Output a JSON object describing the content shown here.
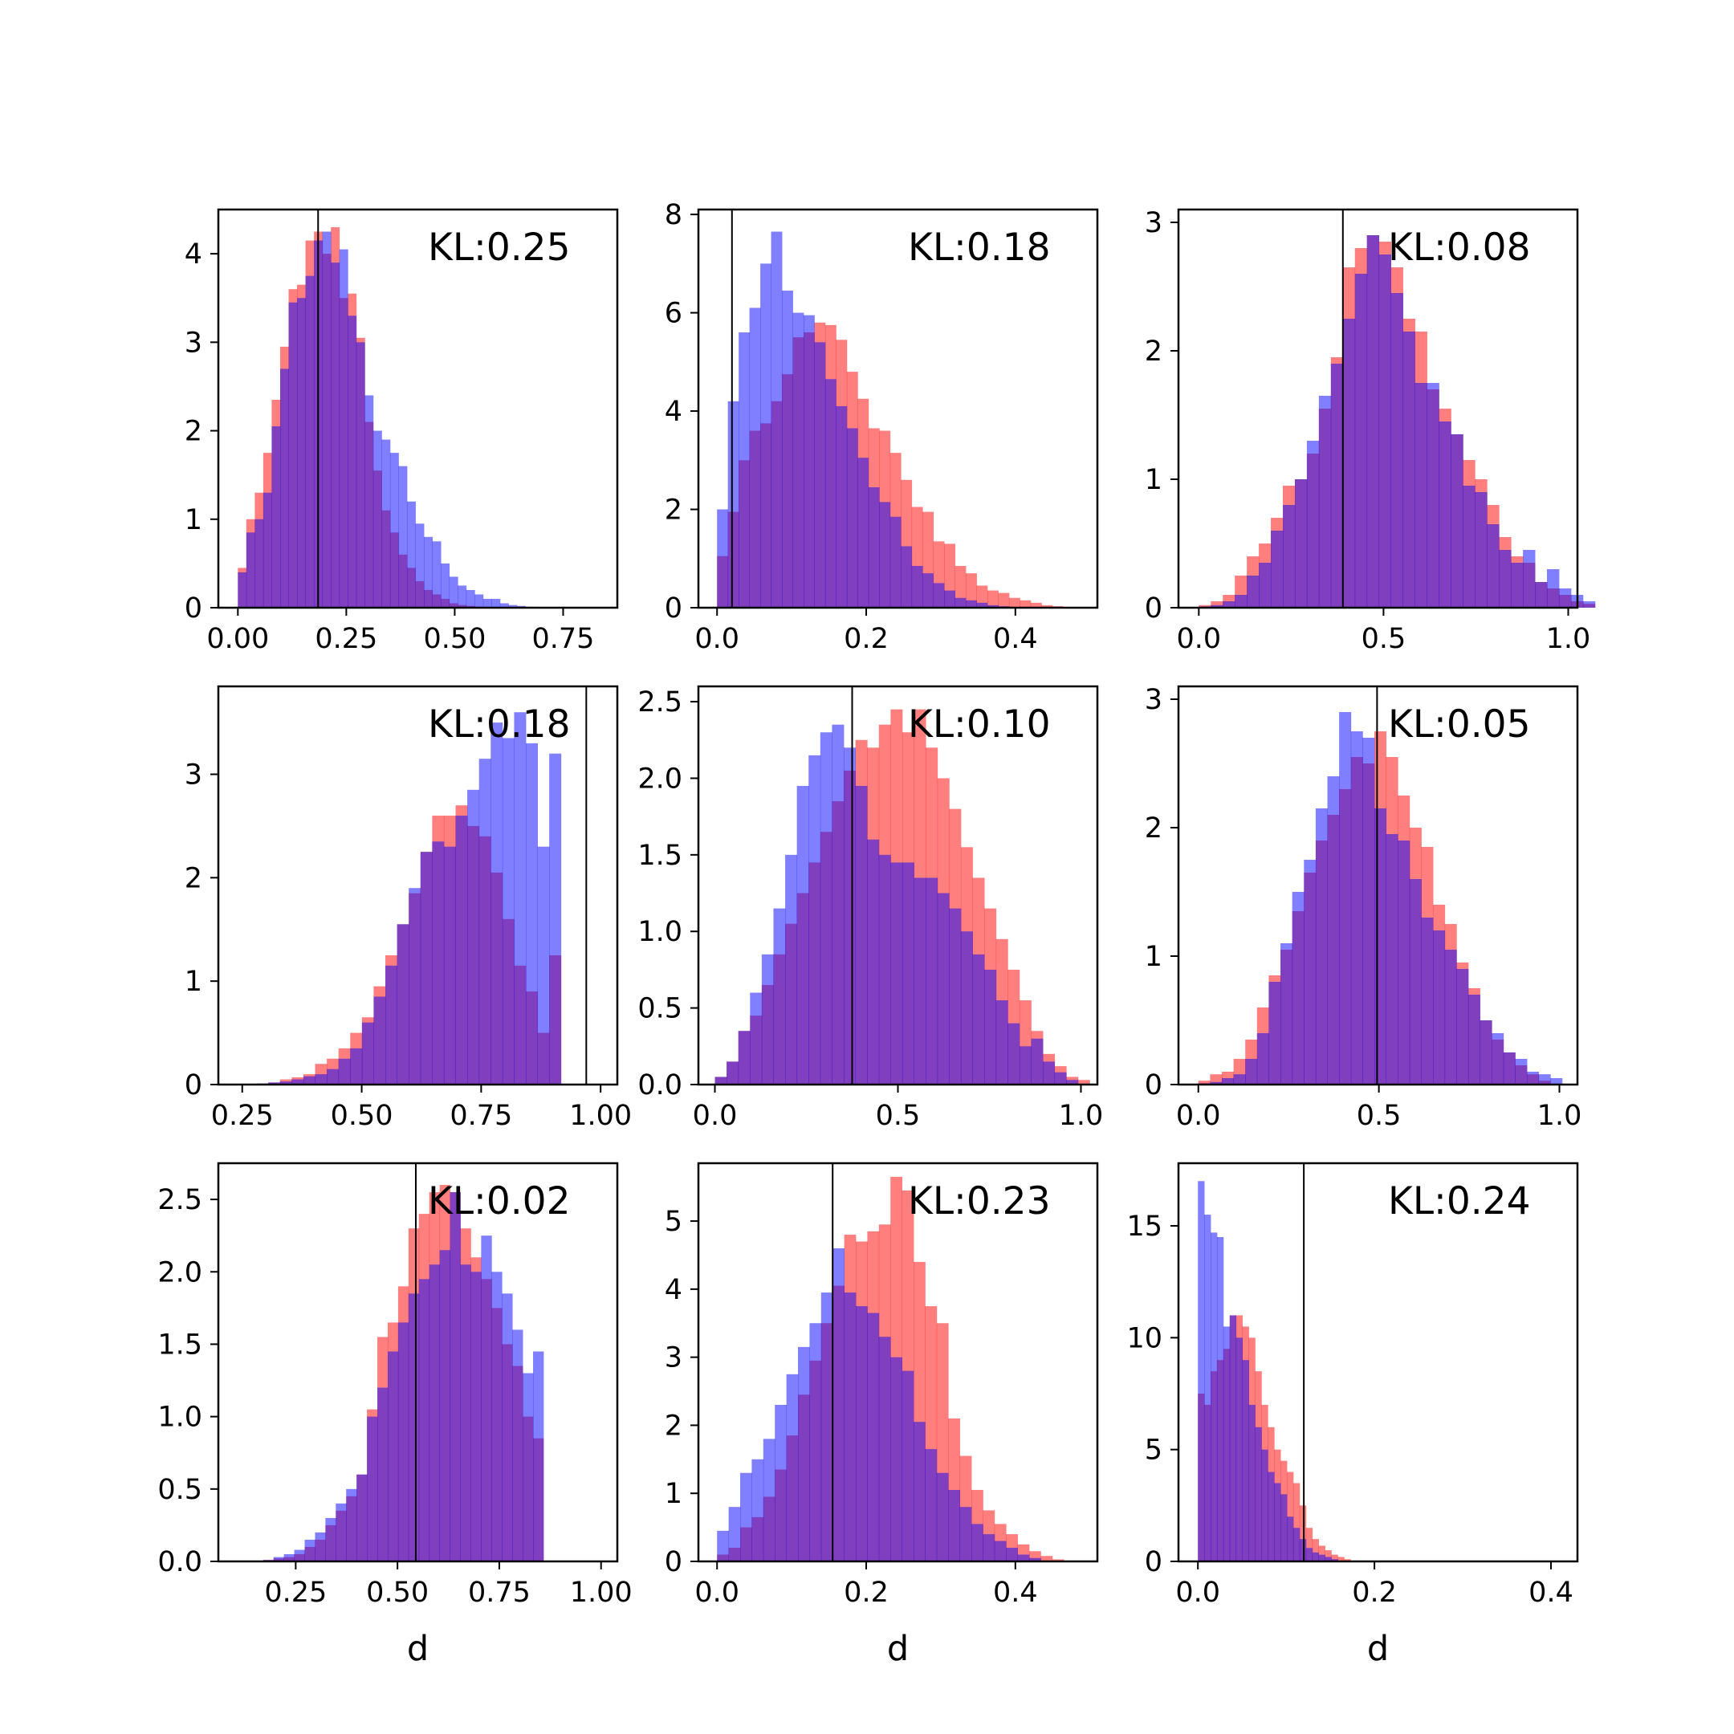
{
  "colors": {
    "series_a": "#ff0000",
    "series_b": "#0000ff",
    "overlap": "#7f3fbf",
    "marker_line": "#000000"
  },
  "chart_data": [
    {
      "type": "bar",
      "bar_style": "overlapping histograms (alpha 0.5)",
      "annotation": "KL:0.25",
      "xlabel": "",
      "ylabel": "",
      "xlim": [
        -0.045,
        0.875
      ],
      "ylim": [
        0,
        4.5
      ],
      "xticks": [
        "0.00",
        "0.25",
        "0.50",
        "0.75"
      ],
      "xtick_values": [
        0,
        0.25,
        0.5,
        0.75
      ],
      "yticks": [
        "0",
        "1",
        "2",
        "3",
        "4"
      ],
      "ytick_values": [
        0,
        1,
        2,
        3,
        4
      ],
      "vline": 0.185,
      "series_a_hist": {
        "x_start": 0.0,
        "bin_width": 0.0195,
        "values": [
          0.45,
          1.0,
          1.3,
          1.75,
          2.35,
          2.95,
          3.6,
          3.65,
          4.15,
          4.25,
          4.0,
          4.3,
          3.5,
          3.55,
          3.05,
          2.1,
          1.55,
          1.1,
          0.85,
          0.6,
          0.45,
          0.3,
          0.2,
          0.15,
          0.1,
          0.05,
          0.03,
          0.02,
          0.01
        ]
      },
      "series_b_hist": {
        "x_start": 0.0,
        "bin_width": 0.0195,
        "values": [
          0.4,
          0.85,
          1.0,
          1.3,
          2.05,
          2.7,
          3.45,
          3.5,
          3.75,
          4.15,
          4.25,
          3.9,
          4.05,
          3.3,
          3.0,
          2.4,
          2.0,
          1.9,
          1.75,
          1.6,
          1.2,
          0.95,
          0.8,
          0.75,
          0.5,
          0.35,
          0.25,
          0.2,
          0.15,
          0.1,
          0.1,
          0.05,
          0.03,
          0.02,
          0.01
        ]
      }
    },
    {
      "type": "bar",
      "bar_style": "overlapping histograms (alpha 0.5)",
      "annotation": "KL:0.18",
      "xlabel": "",
      "ylabel": "",
      "xlim": [
        -0.025,
        0.51
      ],
      "ylim": [
        0,
        8.1
      ],
      "xticks": [
        "0.0",
        "0.2",
        "0.4"
      ],
      "xtick_values": [
        0,
        0.2,
        0.4
      ],
      "yticks": [
        "0",
        "2",
        "4",
        "6",
        "8"
      ],
      "ytick_values": [
        0,
        2,
        4,
        6,
        8
      ],
      "vline": 0.02,
      "series_a_hist": {
        "x_start": 0.0,
        "bin_width": 0.0145,
        "values": [
          1.05,
          1.95,
          3.0,
          3.6,
          3.75,
          4.2,
          4.75,
          5.5,
          5.6,
          5.8,
          5.75,
          5.45,
          4.8,
          4.25,
          3.65,
          3.6,
          3.15,
          2.6,
          2.05,
          1.95,
          1.35,
          1.3,
          0.85,
          0.7,
          0.45,
          0.35,
          0.3,
          0.2,
          0.15,
          0.1,
          0.05,
          0.03
        ]
      },
      "series_b_hist": {
        "x_start": 0.0,
        "bin_width": 0.0145,
        "values": [
          2.0,
          4.2,
          5.6,
          6.1,
          7.0,
          7.65,
          6.45,
          6.0,
          5.95,
          5.4,
          4.65,
          4.1,
          3.65,
          3.05,
          2.45,
          2.15,
          1.85,
          1.25,
          0.85,
          0.7,
          0.5,
          0.35,
          0.2,
          0.15,
          0.1,
          0.05,
          0.03
        ]
      }
    },
    {
      "type": "bar",
      "bar_style": "overlapping histograms (alpha 0.5)",
      "annotation": "KL:0.08",
      "xlabel": "",
      "ylabel": "",
      "xlim": [
        -0.055,
        1.025
      ],
      "ylim": [
        0,
        3.1
      ],
      "xticks": [
        "0.0",
        "0.5",
        "1.0"
      ],
      "xtick_values": [
        0,
        0.5,
        1.0
      ],
      "yticks": [
        "0",
        "1",
        "2",
        "3"
      ],
      "ytick_values": [
        0,
        1,
        2,
        3
      ],
      "vline": 0.39,
      "series_a_hist": {
        "x_start": 0.0,
        "bin_width": 0.0325,
        "values": [
          0.02,
          0.05,
          0.1,
          0.25,
          0.4,
          0.5,
          0.7,
          0.95,
          1.0,
          1.2,
          1.55,
          1.95,
          2.65,
          2.8,
          2.9,
          2.85,
          2.65,
          2.25,
          2.15,
          1.7,
          1.55,
          1.35,
          1.15,
          1.0,
          0.8,
          0.55,
          0.4,
          0.35,
          0.2,
          0.15,
          0.1,
          0.05,
          0.03
        ]
      },
      "series_b_hist": {
        "x_start": 0.0,
        "bin_width": 0.0325,
        "values": [
          0.01,
          0.02,
          0.05,
          0.1,
          0.25,
          0.35,
          0.6,
          0.8,
          1.0,
          1.3,
          1.65,
          1.9,
          2.25,
          2.6,
          2.9,
          2.75,
          2.45,
          2.15,
          1.75,
          1.75,
          1.45,
          1.35,
          0.95,
          0.9,
          0.65,
          0.45,
          0.35,
          0.45,
          0.2,
          0.3,
          0.15,
          0.1,
          0.05
        ]
      }
    },
    {
      "type": "bar",
      "bar_style": "overlapping histograms (alpha 0.5)",
      "annotation": "KL:0.18",
      "xlabel": "",
      "ylabel": "",
      "xlim": [
        0.2,
        1.035
      ],
      "ylim": [
        0,
        3.85
      ],
      "xticks": [
        "0.25",
        "0.50",
        "0.75",
        "1.00"
      ],
      "xtick_values": [
        0.25,
        0.5,
        0.75,
        1.0
      ],
      "yticks": [
        "0",
        "1",
        "2",
        "3"
      ],
      "ytick_values": [
        0,
        1,
        2,
        3
      ],
      "vline": 0.97,
      "series_a_hist": {
        "x_start": 0.28,
        "bin_width": 0.0245,
        "values": [
          0.01,
          0.02,
          0.05,
          0.07,
          0.1,
          0.2,
          0.25,
          0.35,
          0.5,
          0.65,
          0.95,
          1.25,
          1.55,
          1.85,
          2.25,
          2.6,
          2.6,
          2.7,
          2.5,
          2.4,
          2.05,
          1.6,
          1.15,
          0.9,
          0.5,
          1.25
        ]
      },
      "series_b_hist": {
        "x_start": 0.28,
        "bin_width": 0.0245,
        "values": [
          0.01,
          0.02,
          0.03,
          0.05,
          0.08,
          0.1,
          0.15,
          0.25,
          0.35,
          0.6,
          0.85,
          1.15,
          1.55,
          1.9,
          2.25,
          2.35,
          2.3,
          2.6,
          2.85,
          3.15,
          3.5,
          3.35,
          3.6,
          3.3,
          2.3,
          3.2
        ]
      }
    },
    {
      "type": "bar",
      "bar_style": "overlapping histograms (alpha 0.5)",
      "annotation": "KL:0.10",
      "xlabel": "",
      "ylabel": "",
      "xlim": [
        -0.045,
        1.045
      ],
      "ylim": [
        0,
        2.6
      ],
      "xticks": [
        "0.0",
        "0.5",
        "1.0"
      ],
      "xtick_values": [
        0,
        0.5,
        1.0
      ],
      "yticks": [
        "0.0",
        "0.5",
        "1.0",
        "1.5",
        "2.0",
        "2.5"
      ],
      "ytick_values": [
        0,
        0.5,
        1.0,
        1.5,
        2.0,
        2.5
      ],
      "vline": 0.375,
      "series_a_hist": {
        "x_start": 0.0,
        "bin_width": 0.032,
        "values": [
          0.05,
          0.15,
          0.35,
          0.45,
          0.65,
          0.85,
          1.05,
          1.25,
          1.45,
          1.65,
          1.85,
          2.05,
          2.25,
          2.2,
          2.35,
          2.45,
          2.3,
          2.45,
          2.2,
          2.0,
          1.8,
          1.55,
          1.35,
          1.15,
          0.95,
          0.75,
          0.55,
          0.35,
          0.2,
          0.12,
          0.05,
          0.03
        ]
      },
      "series_b_hist": {
        "x_start": 0.0,
        "bin_width": 0.032,
        "values": [
          0.05,
          0.15,
          0.35,
          0.6,
          0.85,
          1.15,
          1.5,
          1.95,
          2.15,
          2.3,
          2.35,
          2.2,
          1.95,
          1.6,
          1.5,
          1.45,
          1.45,
          1.35,
          1.35,
          1.25,
          1.15,
          1.0,
          0.85,
          0.75,
          0.55,
          0.4,
          0.25,
          0.3,
          0.15,
          0.08,
          0.03
        ]
      }
    },
    {
      "type": "bar",
      "bar_style": "overlapping histograms (alpha 0.5)",
      "annotation": "KL:0.05",
      "xlabel": "",
      "ylabel": "",
      "xlim": [
        -0.055,
        1.05
      ],
      "ylim": [
        0,
        3.1
      ],
      "xticks": [
        "0.0",
        "0.5",
        "1.0"
      ],
      "xtick_values": [
        0,
        0.5,
        1.0
      ],
      "yticks": [
        "0",
        "1",
        "2",
        "3"
      ],
      "ytick_values": [
        0,
        1,
        2,
        3
      ],
      "vline": 0.495,
      "series_a_hist": {
        "x_start": 0.0,
        "bin_width": 0.0325,
        "values": [
          0.03,
          0.08,
          0.1,
          0.2,
          0.35,
          0.6,
          0.85,
          1.05,
          1.35,
          1.65,
          1.9,
          2.1,
          2.3,
          2.55,
          2.5,
          2.75,
          2.55,
          2.25,
          2.0,
          1.85,
          1.4,
          1.25,
          0.95,
          0.75,
          0.5,
          0.35,
          0.25,
          0.15,
          0.08,
          0.03
        ]
      },
      "series_b_hist": {
        "x_start": 0.0,
        "bin_width": 0.0325,
        "values": [
          0.01,
          0.02,
          0.05,
          0.08,
          0.2,
          0.4,
          0.8,
          1.1,
          1.5,
          1.75,
          2.15,
          2.4,
          2.9,
          2.75,
          2.7,
          2.15,
          1.95,
          1.9,
          1.6,
          1.3,
          1.2,
          1.05,
          0.9,
          0.7,
          0.5,
          0.4,
          0.25,
          0.2,
          0.1,
          0.08,
          0.05
        ]
      }
    },
    {
      "type": "bar",
      "bar_style": "overlapping histograms (alpha 0.5)",
      "annotation": "KL:0.02",
      "xlabel": "d",
      "ylabel": "",
      "xlim": [
        0.06,
        1.04
      ],
      "ylim": [
        0,
        2.75
      ],
      "xticks": [
        "0.25",
        "0.50",
        "0.75",
        "1.00"
      ],
      "xtick_values": [
        0.25,
        0.5,
        0.75,
        1.0
      ],
      "yticks": [
        "0.0",
        "0.5",
        "1.0",
        "1.5",
        "2.0",
        "2.5"
      ],
      "ytick_values": [
        0,
        0.5,
        1.0,
        1.5,
        2.0,
        2.5
      ],
      "vline": 0.545,
      "series_a_hist": {
        "x_start": 0.17,
        "bin_width": 0.0255,
        "values": [
          0.01,
          0.02,
          0.03,
          0.05,
          0.1,
          0.15,
          0.25,
          0.35,
          0.45,
          0.6,
          1.05,
          1.55,
          1.65,
          1.9,
          2.3,
          2.4,
          2.55,
          2.6,
          2.55,
          2.3,
          2.1,
          1.95,
          1.75,
          1.5,
          1.35,
          1.0,
          0.85
        ]
      },
      "series_b_hist": {
        "x_start": 0.17,
        "bin_width": 0.0255,
        "values": [
          0.01,
          0.03,
          0.05,
          0.08,
          0.15,
          0.2,
          0.3,
          0.4,
          0.5,
          0.6,
          1.0,
          1.2,
          1.45,
          1.65,
          1.85,
          1.95,
          2.05,
          2.15,
          2.55,
          2.05,
          2.0,
          2.25,
          2.0,
          1.85,
          1.6,
          1.3,
          1.45
        ]
      }
    },
    {
      "type": "bar",
      "bar_style": "overlapping histograms (alpha 0.5)",
      "annotation": "KL:0.23",
      "xlabel": "d",
      "ylabel": "",
      "xlim": [
        -0.025,
        0.51
      ],
      "ylim": [
        0,
        5.85
      ],
      "xticks": [
        "0.0",
        "0.2",
        "0.4"
      ],
      "xtick_values": [
        0,
        0.2,
        0.4
      ],
      "yticks": [
        "0",
        "1",
        "2",
        "3",
        "4",
        "5"
      ],
      "ytick_values": [
        0,
        1,
        2,
        3,
        4,
        5
      ],
      "vline": 0.155,
      "series_a_hist": {
        "x_start": 0.0,
        "bin_width": 0.0155,
        "values": [
          0.1,
          0.2,
          0.5,
          0.65,
          0.95,
          1.35,
          1.85,
          2.45,
          2.95,
          3.5,
          4.05,
          4.8,
          4.7,
          4.85,
          4.95,
          5.65,
          5.45,
          4.4,
          3.75,
          3.5,
          2.1,
          1.55,
          1.05,
          0.75,
          0.55,
          0.4,
          0.25,
          0.15,
          0.08,
          0.03
        ]
      },
      "series_b_hist": {
        "x_start": 0.0,
        "bin_width": 0.0155,
        "values": [
          0.45,
          0.8,
          1.3,
          1.5,
          1.8,
          2.3,
          2.75,
          3.15,
          3.5,
          3.95,
          4.6,
          3.95,
          3.75,
          3.65,
          3.3,
          3.0,
          2.8,
          2.05,
          1.65,
          1.3,
          1.05,
          0.8,
          0.55,
          0.4,
          0.3,
          0.2,
          0.1,
          0.05
        ]
      }
    },
    {
      "type": "bar",
      "bar_style": "overlapping histograms (alpha 0.5)",
      "annotation": "KL:0.24",
      "xlabel": "d",
      "ylabel": "",
      "xlim": [
        -0.022,
        0.43
      ],
      "ylim": [
        0,
        17.8
      ],
      "xticks": [
        "0.0",
        "0.2",
        "0.4"
      ],
      "xtick_values": [
        0,
        0.2,
        0.4
      ],
      "yticks": [
        "0",
        "5",
        "10",
        "15"
      ],
      "ytick_values": [
        0,
        5,
        10,
        15
      ],
      "vline": 0.12,
      "series_a_hist": {
        "x_start": 0.0,
        "bin_width": 0.0072,
        "values": [
          7.5,
          7.0,
          8.5,
          9.0,
          9.5,
          11.0,
          11.0,
          10.5,
          10.0,
          8.5,
          7.0,
          6.0,
          5.0,
          4.5,
          4.0,
          3.5,
          2.5,
          1.5,
          1.0,
          0.7,
          0.5,
          0.3,
          0.2,
          0.1
        ]
      },
      "series_b_hist": {
        "x_start": 0.0,
        "bin_width": 0.0072,
        "values": [
          17.0,
          15.5,
          14.7,
          14.5,
          10.5,
          11.0,
          10.0,
          9.0,
          7.0,
          6.0,
          5.0,
          4.0,
          3.5,
          3.0,
          2.0,
          1.5,
          1.0,
          0.6,
          0.4,
          0.3,
          0.2,
          0.1
        ]
      }
    }
  ]
}
